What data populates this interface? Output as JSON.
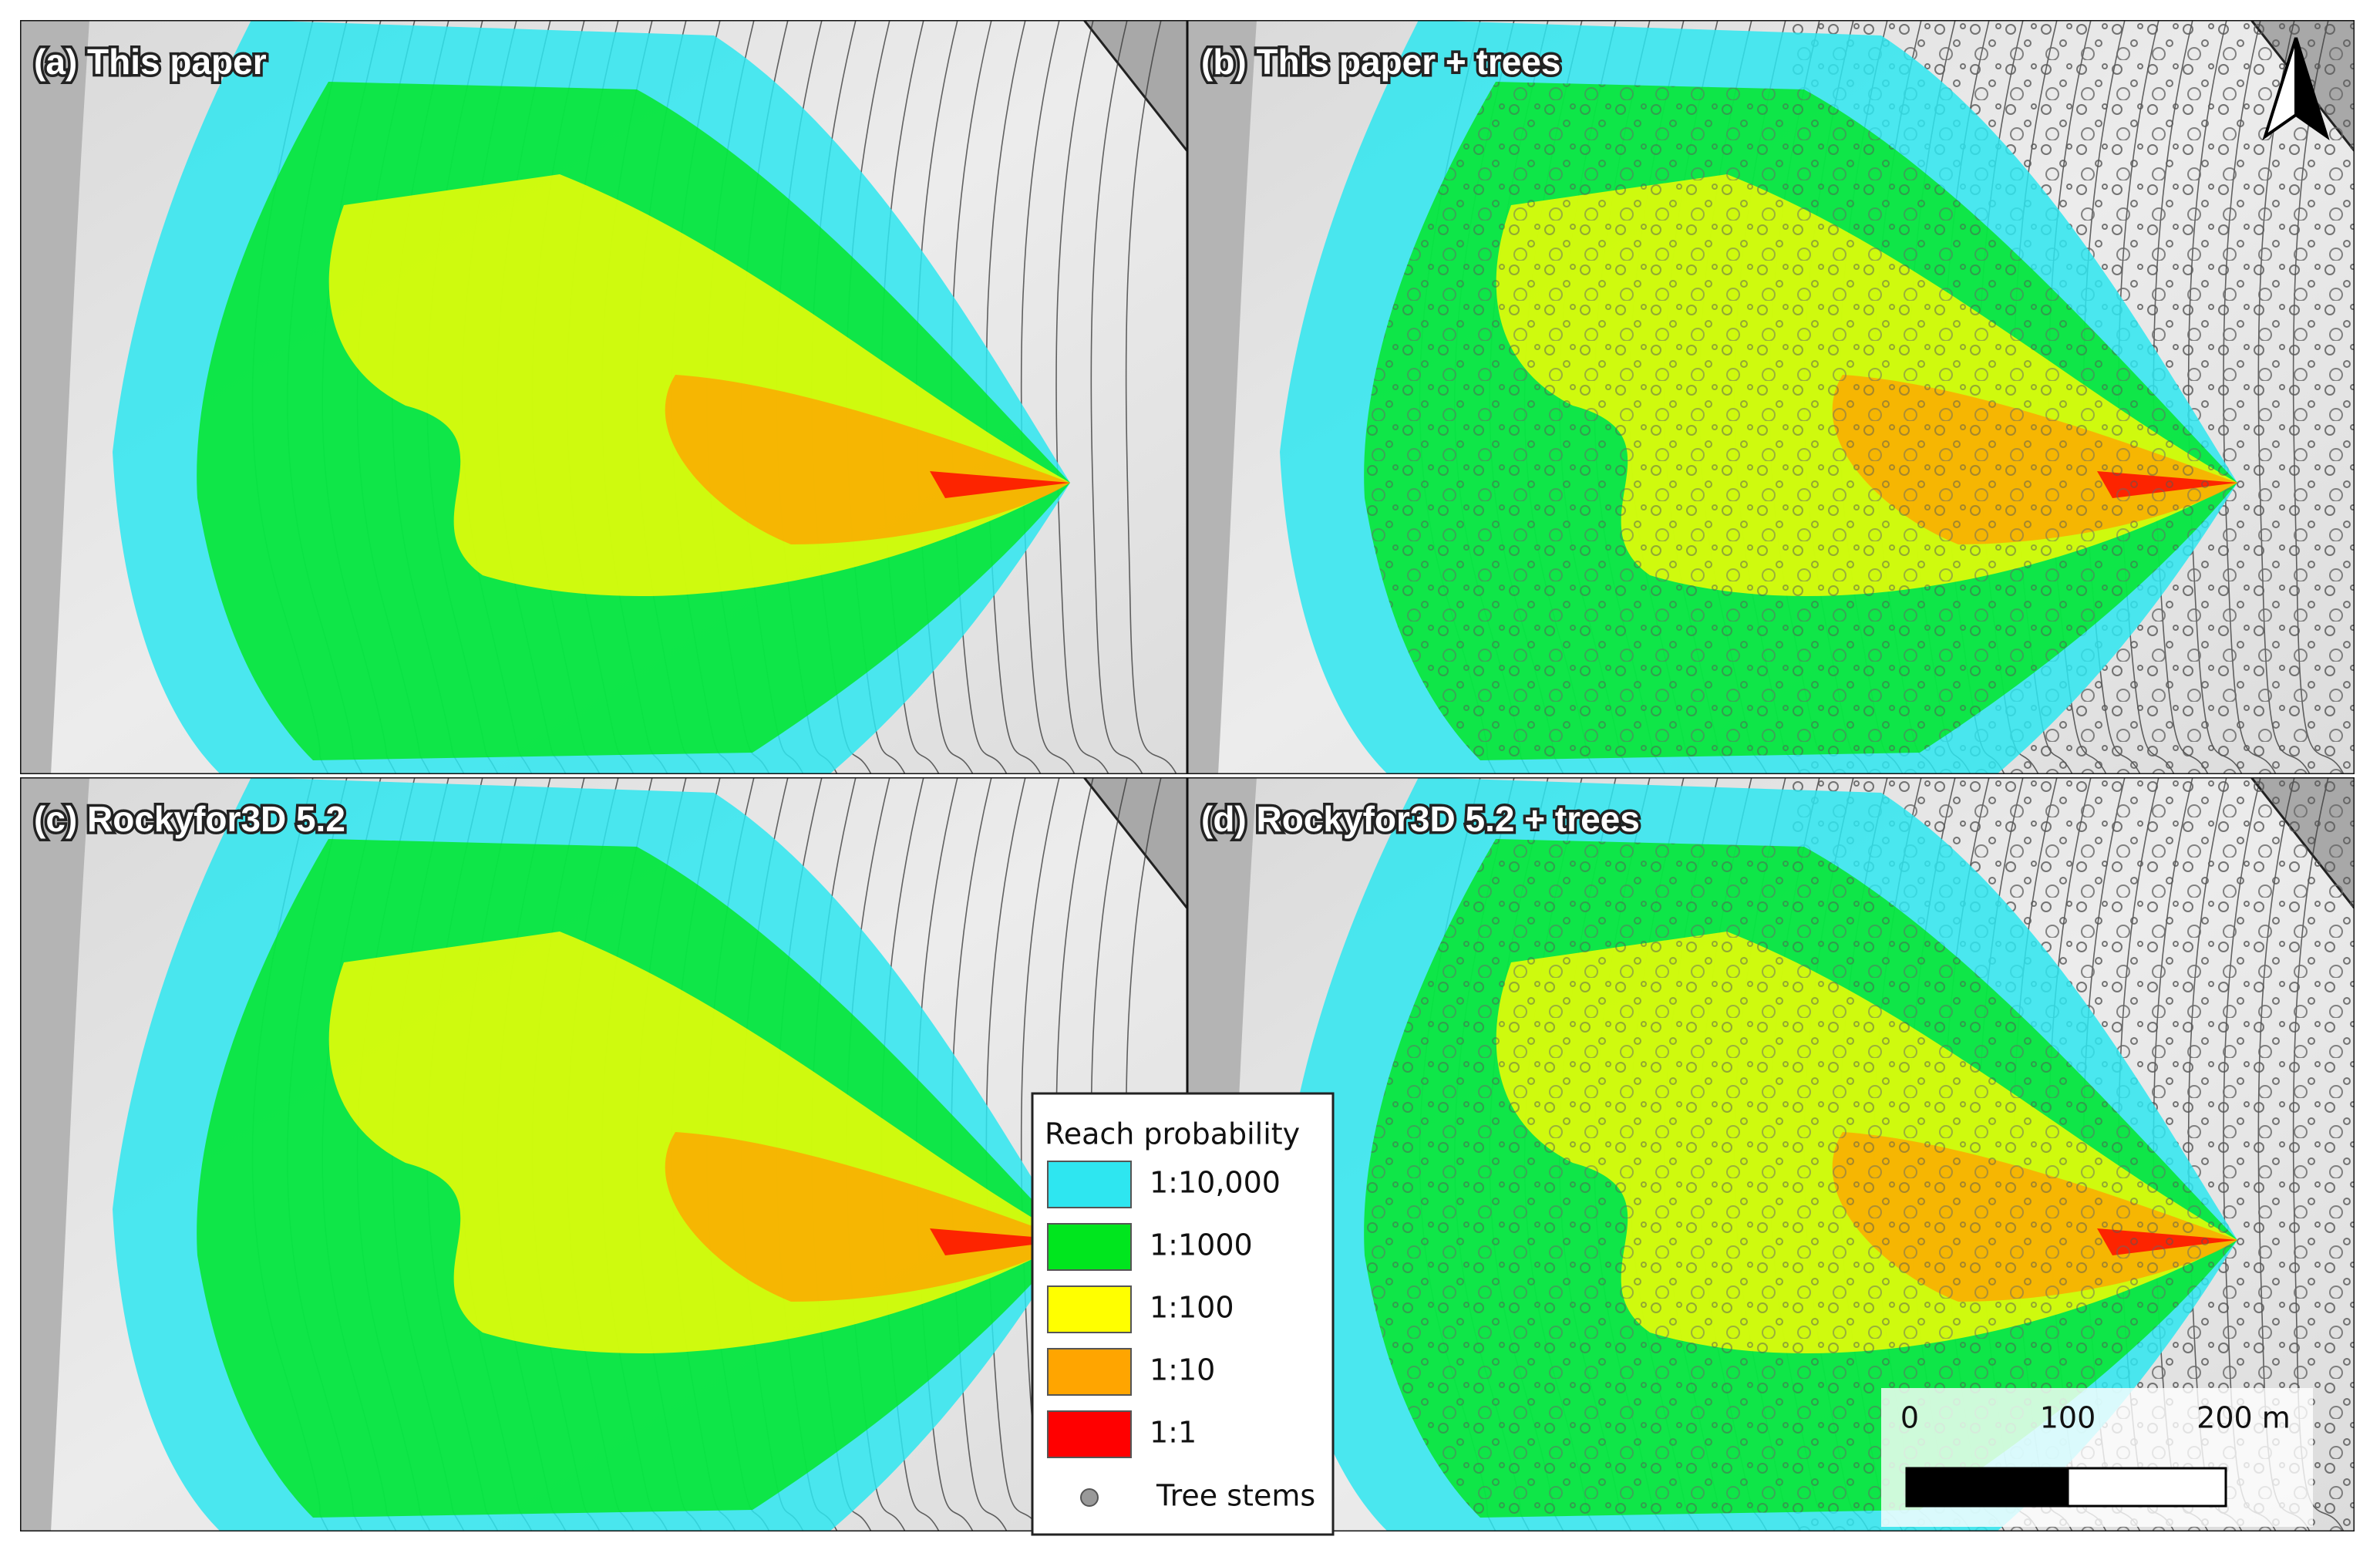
{
  "panels": [
    {
      "label": "(a) This paper"
    },
    {
      "label": "(b) This paper + trees"
    },
    {
      "label": "(c) Rockyfor3D 5.2"
    },
    {
      "label": "(d) Rockyfor3D 5.2 + trees"
    }
  ],
  "legend": {
    "title": "Reach probability",
    "items": [
      {
        "label": "1:10,000",
        "color": "#2ee6f0"
      },
      {
        "label": "1:1000",
        "color": "#00e61e"
      },
      {
        "label": "1:100",
        "color": "#ffff00"
      },
      {
        "label": "1:10",
        "color": "#ffa500"
      },
      {
        "label": "1:1",
        "color": "#ff0000"
      }
    ],
    "tree_stems": "Tree stems"
  },
  "scale_bar": {
    "labels": [
      "0",
      "100",
      "200 m"
    ]
  }
}
